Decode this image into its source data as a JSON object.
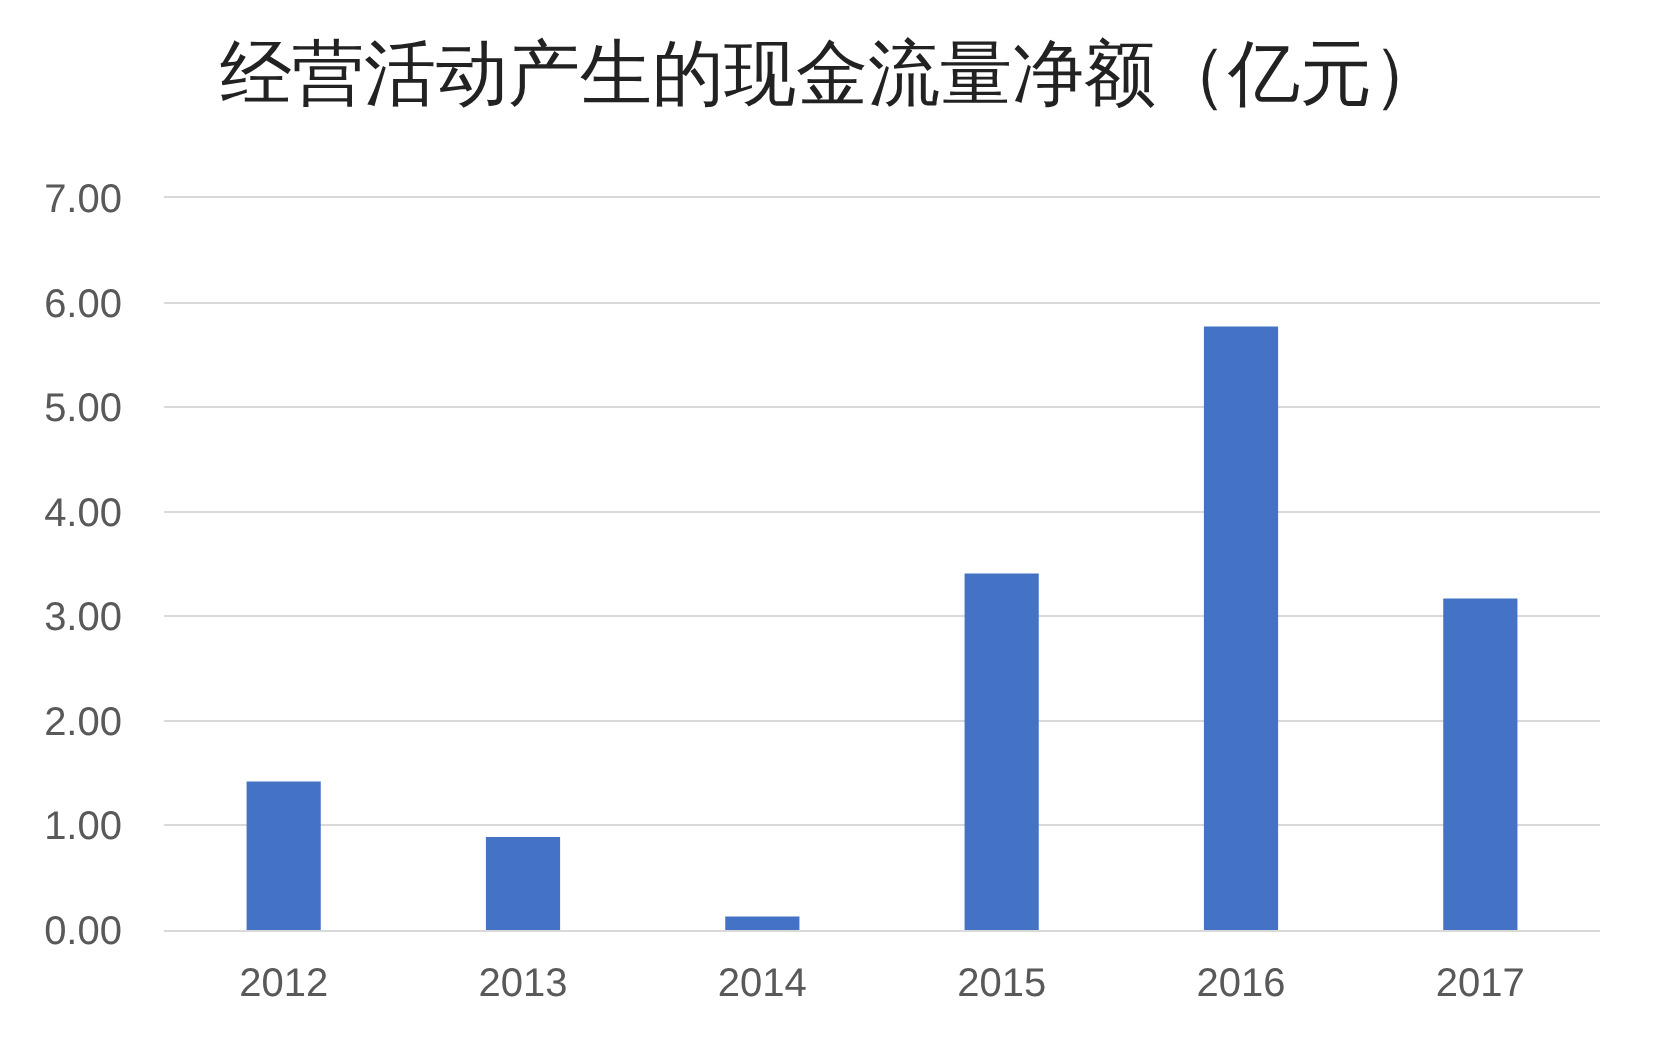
{
  "chart_data": {
    "type": "bar",
    "title": "经营活动产生的现金流量净额（亿元）",
    "categories": [
      "2012",
      "2013",
      "2014",
      "2015",
      "2016",
      "2017"
    ],
    "values": [
      1.42,
      0.89,
      0.13,
      3.41,
      5.77,
      3.17
    ],
    "color": "#4472c4",
    "ylim": [
      0,
      7
    ],
    "yticks": [
      {
        "value": 0,
        "label": "0.00"
      },
      {
        "value": 1,
        "label": "1.00"
      },
      {
        "value": 2,
        "label": "2.00"
      },
      {
        "value": 3,
        "label": "3.00"
      },
      {
        "value": 4,
        "label": "4.00"
      },
      {
        "value": 5,
        "label": "5.00"
      },
      {
        "value": 6,
        "label": "6.00"
      },
      {
        "value": 7,
        "label": "7.00"
      }
    ],
    "grid": "y"
  }
}
